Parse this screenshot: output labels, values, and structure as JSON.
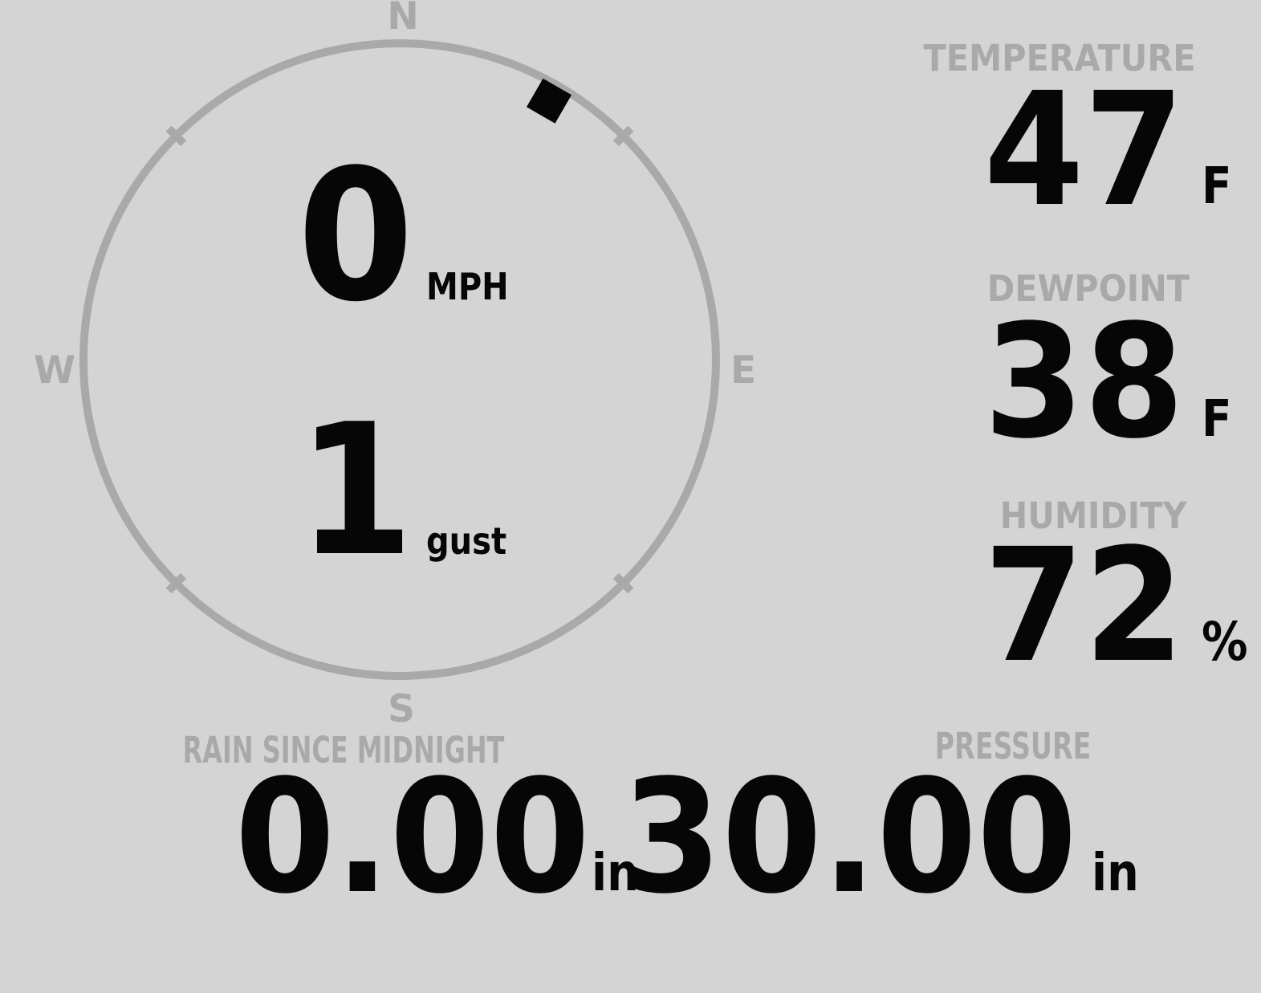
{
  "colors": {
    "background": "#d4d4d4",
    "muted": "#a9a9a9",
    "value": "#060606"
  },
  "compass": {
    "cardinals": {
      "north": "N",
      "east": "E",
      "south": "S",
      "west": "W"
    },
    "wind_direction_deg": 30,
    "speed_value": "0",
    "speed_unit": "MPH",
    "gust_value": "1",
    "gust_unit": "gust"
  },
  "metrics": {
    "temperature": {
      "label": "TEMPERATURE",
      "value": "47",
      "unit": "F"
    },
    "dewpoint": {
      "label": "DEWPOINT",
      "value": "38",
      "unit": "F"
    },
    "humidity": {
      "label": "HUMIDITY",
      "value": "72",
      "unit": "%"
    },
    "rain_since_midnight": {
      "label": "RAIN SINCE MIDNIGHT",
      "value": "0.00",
      "unit": "in"
    },
    "pressure": {
      "label": "PRESSURE",
      "value": "30.00",
      "unit": "in"
    }
  }
}
